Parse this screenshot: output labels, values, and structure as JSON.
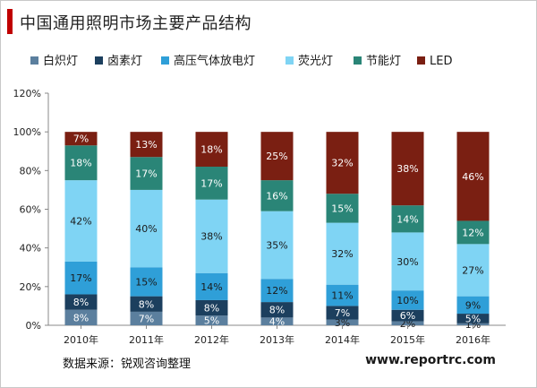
{
  "page_title": "中国通用照明市场主要产品结构",
  "source_text": "数据来源：锐观咨询整理",
  "website_text": "www.reportrc.com",
  "chart_data": {
    "type": "bar",
    "stacked": true,
    "categories": [
      "2010年",
      "2011年",
      "2012年",
      "2013年",
      "2014年",
      "2015年",
      "2016年"
    ],
    "series": [
      {
        "name": "白炽灯",
        "color": "#5b7f9e",
        "values": [
          8,
          7,
          5,
          4,
          3,
          2,
          1
        ]
      },
      {
        "name": "卤素灯",
        "color": "#1c3f5e",
        "values": [
          8,
          8,
          8,
          8,
          7,
          6,
          5
        ]
      },
      {
        "name": "高压气体放电灯",
        "color": "#2f9fd8",
        "values": [
          17,
          15,
          14,
          12,
          11,
          10,
          9
        ]
      },
      {
        "name": "荧光灯",
        "color": "#7fd4f4",
        "values": [
          42,
          40,
          38,
          35,
          32,
          30,
          27
        ]
      },
      {
        "name": "节能灯",
        "color": "#2a8577",
        "values": [
          18,
          17,
          17,
          16,
          15,
          14,
          12
        ]
      },
      {
        "name": "LED",
        "color": "#7a1f12",
        "values": [
          7,
          13,
          18,
          25,
          32,
          38,
          46
        ]
      }
    ],
    "ylim": [
      0,
      120
    ],
    "yticks": [
      "0%",
      "20%",
      "40%",
      "60%",
      "80%",
      "100%",
      "120%"
    ],
    "legend_position": "top",
    "grid": false
  }
}
